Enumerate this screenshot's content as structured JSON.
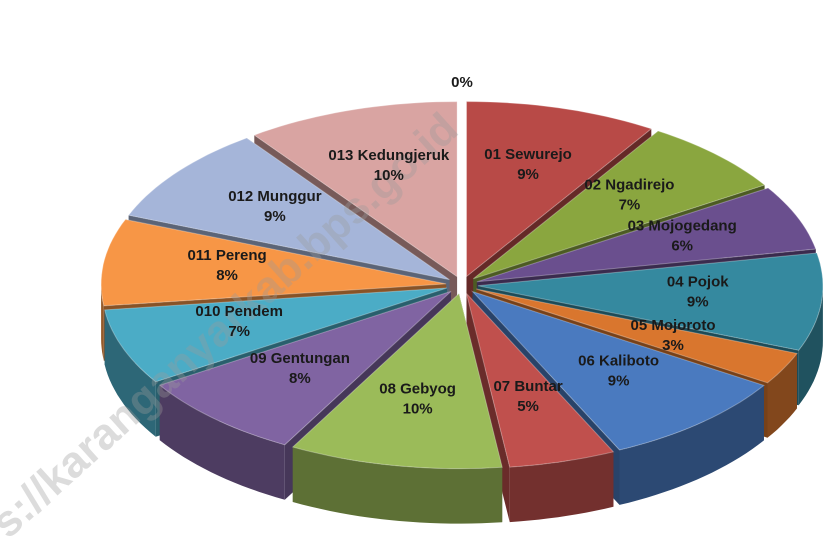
{
  "chart_data": {
    "type": "pie3d",
    "categories": [
      "01 Sewurejo",
      "02 Ngadirejo",
      "03 Mojogedang",
      "04 Pojok",
      "05 Mojoroto",
      "06 Kaliboto",
      "07 Buntar",
      "08 Gebyog",
      "09 Gentungan",
      "010 Pendem",
      "011 Pereng",
      "012 Munggur",
      "013 Kedungjeruk",
      null
    ],
    "values": [
      9,
      7,
      6,
      9,
      3,
      9,
      5,
      10,
      8,
      7,
      8,
      9,
      10,
      0
    ],
    "value_labels": [
      "9%",
      "7%",
      "6%",
      "9%",
      "3%",
      "9%",
      "5%",
      "10%",
      "8%",
      "7%",
      "8%",
      "9%",
      "10%",
      "0%"
    ],
    "colors": [
      "#b84a47",
      "#8aa63f",
      "#6a4f8e",
      "#35899f",
      "#d9762e",
      "#4a7abf",
      "#c0504d",
      "#9bbb59",
      "#8064a2",
      "#4bacc6",
      "#f79646",
      "#a5b5d9",
      "#d9a4a2",
      "#d9a4a2"
    ],
    "watermark": "s://karanganyarkab.bps.go.id"
  }
}
